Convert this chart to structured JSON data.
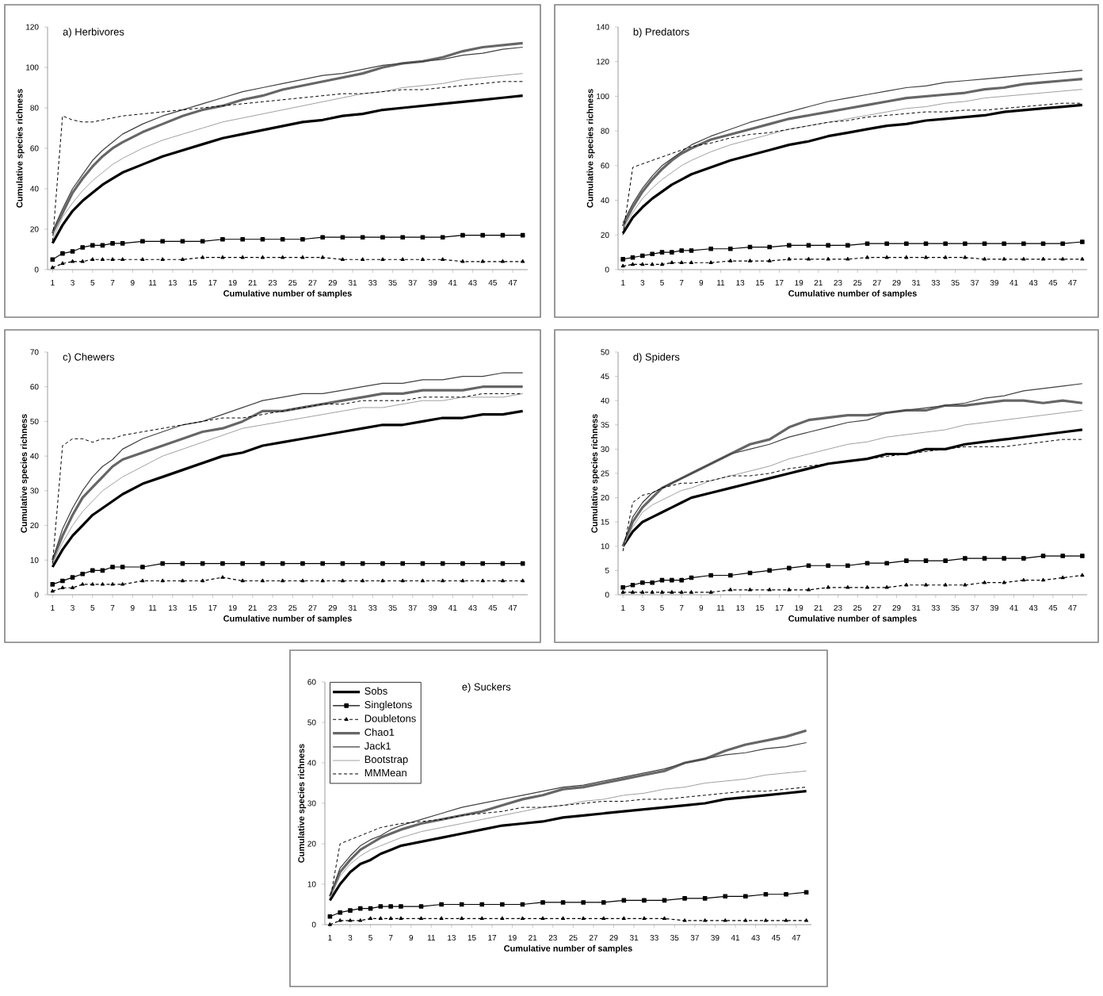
{
  "chart_data": [
    {
      "type": "line",
      "title": "a) Herbivores",
      "xlabel": "Cumulative number of samples",
      "ylabel": "Cumulative species richness",
      "xlim": [
        0.5,
        48.5
      ],
      "xticks": [
        1,
        3,
        5,
        7,
        9,
        11,
        13,
        15,
        17,
        19,
        21,
        23,
        25,
        27,
        29,
        31,
        33,
        35,
        37,
        39,
        41,
        43,
        45,
        47
      ],
      "ylim": [
        0,
        120
      ],
      "yticks": [
        0,
        20,
        40,
        60,
        80,
        100,
        120
      ],
      "x": [
        1,
        2,
        3,
        4,
        5,
        6,
        7,
        8,
        10,
        12,
        14,
        16,
        18,
        20,
        22,
        24,
        26,
        28,
        30,
        32,
        34,
        36,
        38,
        40,
        42,
        44,
        46,
        48
      ],
      "series": [
        {
          "color": "#000000",
          "values": [
            13,
            22,
            29,
            34,
            38,
            42,
            45,
            48,
            52,
            56,
            59,
            62,
            65,
            67,
            69,
            71,
            73,
            74,
            76,
            77,
            79,
            80,
            81,
            82,
            83,
            84,
            85,
            86
          ]
        },
        {
          "color": "#000000",
          "marker": "square",
          "values": [
            5,
            8,
            9,
            11,
            12,
            12,
            13,
            13,
            14,
            14,
            14,
            14,
            15,
            15,
            15,
            15,
            15,
            16,
            16,
            16,
            16,
            16,
            16,
            16,
            17,
            17,
            17,
            17
          ]
        },
        {
          "color": "#000000",
          "marker": "triangle",
          "line_style": "dashed",
          "values": [
            1,
            3,
            4,
            4,
            5,
            5,
            5,
            5,
            5,
            5,
            5,
            6,
            6,
            6,
            6,
            6,
            6,
            6,
            5,
            5,
            5,
            5,
            5,
            5,
            4,
            4,
            4,
            4
          ]
        },
        {
          "color": "#666666",
          "values": [
            18,
            28,
            38,
            45,
            51,
            56,
            60,
            63,
            68,
            72,
            76,
            79,
            81,
            84,
            86,
            89,
            91,
            93,
            95,
            97,
            100,
            102,
            103,
            105,
            108,
            110,
            111,
            112
          ]
        },
        {
          "color": "#404040",
          "values": [
            19,
            30,
            40,
            47,
            54,
            59,
            63,
            67,
            72,
            76,
            79,
            82,
            85,
            88,
            90,
            92,
            94,
            96,
            97,
            99,
            101,
            102,
            103,
            104,
            106,
            107,
            109,
            110
          ]
        },
        {
          "color": "#a0a0a0",
          "values": [
            15,
            26,
            33,
            39,
            44,
            48,
            52,
            55,
            60,
            64,
            67,
            70,
            73,
            75,
            77,
            79,
            81,
            83,
            85,
            87,
            88,
            90,
            91,
            92,
            94,
            95,
            96,
            97
          ]
        },
        {
          "color": "#000000",
          "line_style": "dashed",
          "values": [
            14,
            76,
            74,
            73,
            73,
            74,
            75,
            76,
            77,
            78,
            79,
            80,
            81,
            82,
            83,
            84,
            85,
            86,
            87,
            87,
            88,
            89,
            89,
            90,
            91,
            92,
            93,
            93
          ]
        }
      ]
    },
    {
      "type": "line",
      "title": "b) Predators",
      "xlabel": "Cumulative number of samples",
      "ylabel": "Cumulative species richness",
      "xlim": [
        0.5,
        48.5
      ],
      "xticks": [
        1,
        3,
        5,
        7,
        9,
        11,
        13,
        15,
        17,
        19,
        21,
        23,
        25,
        27,
        29,
        31,
        33,
        35,
        37,
        39,
        41,
        43,
        45,
        47
      ],
      "ylim": [
        0,
        140
      ],
      "yticks": [
        0,
        20,
        40,
        60,
        80,
        100,
        120,
        140
      ],
      "x": [
        1,
        2,
        3,
        4,
        5,
        6,
        7,
        8,
        10,
        12,
        14,
        16,
        18,
        20,
        22,
        24,
        26,
        28,
        30,
        32,
        34,
        36,
        38,
        40,
        42,
        44,
        46,
        48
      ],
      "series": [
        {
          "color": "#000000",
          "values": [
            21,
            30,
            36,
            41,
            45,
            49,
            52,
            55,
            59,
            63,
            66,
            69,
            72,
            74,
            77,
            79,
            81,
            83,
            84,
            86,
            87,
            88,
            89,
            91,
            92,
            93,
            94,
            95
          ]
        },
        {
          "color": "#000000",
          "marker": "square",
          "values": [
            6,
            7,
            8,
            9,
            10,
            10,
            11,
            11,
            12,
            12,
            13,
            13,
            14,
            14,
            14,
            14,
            15,
            15,
            15,
            15,
            15,
            15,
            15,
            15,
            15,
            15,
            15,
            16
          ]
        },
        {
          "color": "#000000",
          "marker": "triangle",
          "line_style": "dashed",
          "values": [
            2,
            3,
            3,
            3,
            3,
            4,
            4,
            4,
            4,
            5,
            5,
            5,
            6,
            6,
            6,
            6,
            7,
            7,
            7,
            7,
            7,
            7,
            6,
            6,
            6,
            6,
            6,
            6
          ]
        },
        {
          "color": "#666666",
          "values": [
            25,
            36,
            45,
            52,
            58,
            63,
            67,
            70,
            75,
            78,
            81,
            84,
            87,
            89,
            91,
            93,
            95,
            97,
            99,
            100,
            101,
            102,
            104,
            105,
            107,
            108,
            109,
            110
          ]
        },
        {
          "color": "#404040",
          "values": [
            27,
            38,
            47,
            54,
            60,
            64,
            68,
            72,
            77,
            81,
            85,
            88,
            91,
            94,
            97,
            99,
            101,
            103,
            105,
            106,
            108,
            109,
            110,
            111,
            112,
            113,
            114,
            115
          ]
        },
        {
          "color": "#a0a0a0",
          "values": [
            23,
            33,
            41,
            47,
            52,
            56,
            60,
            63,
            68,
            72,
            75,
            78,
            81,
            83,
            85,
            87,
            89,
            91,
            93,
            94,
            96,
            97,
            99,
            100,
            101,
            102,
            103,
            104
          ]
        },
        {
          "color": "#000000",
          "line_style": "dashed",
          "values": [
            20,
            59,
            61,
            63,
            65,
            67,
            69,
            71,
            73,
            76,
            78,
            79,
            81,
            83,
            85,
            86,
            88,
            89,
            90,
            91,
            91,
            92,
            92,
            93,
            94,
            95,
            96,
            96
          ]
        }
      ]
    },
    {
      "type": "line",
      "title": "c) Chewers",
      "xlabel": "Cumulative number of samples",
      "ylabel": "Cumulative species richness",
      "xlim": [
        0.5,
        48.5
      ],
      "xticks": [
        1,
        3,
        5,
        7,
        9,
        11,
        13,
        15,
        17,
        19,
        21,
        23,
        25,
        27,
        29,
        31,
        33,
        35,
        37,
        39,
        41,
        43,
        45,
        47
      ],
      "ylim": [
        0,
        70
      ],
      "yticks": [
        0,
        10,
        20,
        30,
        40,
        50,
        60,
        70
      ],
      "x": [
        1,
        2,
        3,
        4,
        5,
        6,
        7,
        8,
        10,
        12,
        14,
        16,
        18,
        20,
        22,
        24,
        26,
        28,
        30,
        32,
        34,
        36,
        38,
        40,
        42,
        44,
        46,
        48
      ],
      "series": [
        {
          "color": "#000000",
          "values": [
            8,
            13,
            17,
            20,
            23,
            25,
            27,
            29,
            32,
            34,
            36,
            38,
            40,
            41,
            43,
            44,
            45,
            46,
            47,
            48,
            49,
            49,
            50,
            51,
            51,
            52,
            52,
            53
          ]
        },
        {
          "color": "#000000",
          "marker": "square",
          "values": [
            3,
            4,
            5,
            6,
            7,
            7,
            8,
            8,
            8,
            9,
            9,
            9,
            9,
            9,
            9,
            9,
            9,
            9,
            9,
            9,
            9,
            9,
            9,
            9,
            9,
            9,
            9,
            9
          ]
        },
        {
          "color": "#000000",
          "marker": "triangle",
          "line_style": "dashed",
          "values": [
            1,
            2,
            2,
            3,
            3,
            3,
            3,
            3,
            4,
            4,
            4,
            4,
            5,
            4,
            4,
            4,
            4,
            4,
            4,
            4,
            4,
            4,
            4,
            4,
            4,
            4,
            4,
            4
          ]
        },
        {
          "color": "#666666",
          "values": [
            10,
            17,
            23,
            28,
            31,
            34,
            37,
            39,
            41,
            43,
            45,
            47,
            48,
            50,
            53,
            53,
            54,
            55,
            56,
            57,
            58,
            58,
            59,
            59,
            59,
            60,
            60,
            60
          ]
        },
        {
          "color": "#404040",
          "values": [
            10,
            19,
            25,
            30,
            34,
            37,
            39,
            42,
            45,
            47,
            49,
            50,
            52,
            54,
            56,
            57,
            58,
            58,
            59,
            60,
            61,
            61,
            62,
            62,
            63,
            63,
            64,
            64
          ]
        },
        {
          "color": "#a0a0a0",
          "values": [
            9,
            15,
            20,
            24,
            27,
            30,
            32,
            34,
            37,
            40,
            42,
            44,
            46,
            48,
            49,
            50,
            51,
            52,
            53,
            54,
            54,
            55,
            56,
            56,
            57,
            57,
            57,
            58
          ]
        },
        {
          "color": "#000000",
          "line_style": "dashed",
          "values": [
            9,
            43,
            45,
            45,
            44,
            45,
            45,
            46,
            47,
            48,
            49,
            50,
            51,
            51,
            52,
            53,
            54,
            55,
            55,
            56,
            56,
            56,
            57,
            57,
            57,
            58,
            58,
            58
          ]
        }
      ]
    },
    {
      "type": "line",
      "title": "d) Spiders",
      "xlabel": "Cumulative number of samples",
      "ylabel": "Cumulative species richness",
      "xlim": [
        0.5,
        48.5
      ],
      "xticks": [
        1,
        3,
        5,
        7,
        9,
        11,
        13,
        15,
        17,
        19,
        21,
        23,
        25,
        27,
        29,
        31,
        33,
        35,
        37,
        39,
        41,
        43,
        45,
        47
      ],
      "ylim": [
        0,
        50
      ],
      "yticks": [
        0,
        5,
        10,
        15,
        20,
        25,
        30,
        35,
        40,
        45,
        50
      ],
      "x": [
        1,
        2,
        3,
        4,
        5,
        6,
        7,
        8,
        10,
        12,
        14,
        16,
        18,
        20,
        22,
        24,
        26,
        28,
        30,
        32,
        34,
        36,
        38,
        40,
        42,
        44,
        46,
        48
      ],
      "series": [
        {
          "color": "#000000",
          "values": [
            10,
            13,
            15,
            16,
            17,
            18,
            19,
            20,
            21,
            22,
            23,
            24,
            25,
            26,
            27,
            27.5,
            28,
            29,
            29,
            30,
            30,
            31,
            31.5,
            32,
            32.5,
            33,
            33.5,
            34
          ]
        },
        {
          "color": "#000000",
          "marker": "square",
          "values": [
            1.5,
            2,
            2.5,
            2.5,
            3,
            3,
            3,
            3.5,
            4,
            4,
            4.5,
            5,
            5.5,
            6,
            6,
            6,
            6.5,
            6.5,
            7,
            7,
            7,
            7.5,
            7.5,
            7.5,
            7.5,
            8,
            8,
            8
          ]
        },
        {
          "color": "#000000",
          "marker": "triangle",
          "line_style": "dashed",
          "values": [
            0.5,
            0.5,
            0.5,
            0.5,
            0.5,
            0.5,
            0.5,
            0.5,
            0.5,
            1,
            1,
            1,
            1,
            1,
            1.5,
            1.5,
            1.5,
            1.5,
            2,
            2,
            2,
            2,
            2.5,
            2.5,
            3,
            3,
            3.5,
            4
          ]
        },
        {
          "color": "#666666",
          "values": [
            10,
            15,
            18,
            20,
            22,
            23,
            24,
            25,
            27,
            29,
            31,
            32,
            34.5,
            36,
            36.5,
            37,
            37,
            37.5,
            38,
            38,
            39,
            39,
            39.5,
            40,
            40,
            39.5,
            40,
            39.5
          ]
        },
        {
          "color": "#404040",
          "values": [
            10,
            16,
            19,
            21,
            22,
            23,
            24,
            25,
            27,
            29,
            30,
            31,
            32.5,
            33.5,
            34.5,
            35.5,
            36,
            37.5,
            38,
            38.5,
            39,
            39.5,
            40.5,
            41,
            42,
            42.5,
            43,
            43.5
          ]
        },
        {
          "color": "#a0a0a0",
          "values": [
            10,
            14,
            17,
            18.5,
            19.5,
            20.5,
            21.5,
            22,
            23.5,
            24.5,
            25.5,
            26.5,
            28,
            29,
            30,
            31,
            31.5,
            32.5,
            33,
            33.5,
            34,
            35,
            35.5,
            36,
            36.5,
            37,
            37.5,
            38
          ]
        },
        {
          "color": "#000000",
          "line_style": "dashed",
          "values": [
            9,
            19,
            20.5,
            21,
            22,
            22.5,
            23,
            23,
            23.5,
            24.5,
            24.5,
            25,
            26,
            26.5,
            27,
            27.5,
            28,
            28.5,
            29,
            29.5,
            30,
            30.5,
            30.5,
            30.5,
            31,
            31.5,
            32,
            32
          ]
        }
      ]
    },
    {
      "type": "line",
      "title": "e) Suckers",
      "xlabel": "Cumulative number of samples",
      "ylabel": "Cumulative species richness",
      "xlim": [
        0.5,
        48.5
      ],
      "xticks": [
        1,
        3,
        5,
        7,
        9,
        11,
        13,
        15,
        17,
        19,
        21,
        23,
        25,
        27,
        29,
        31,
        33,
        35,
        37,
        39,
        41,
        43,
        45,
        47
      ],
      "ylim": [
        0,
        60
      ],
      "yticks": [
        0,
        10,
        20,
        30,
        40,
        50,
        60
      ],
      "legend": "top left",
      "x": [
        1,
        2,
        3,
        4,
        5,
        6,
        7,
        8,
        10,
        12,
        14,
        16,
        18,
        20,
        22,
        24,
        26,
        28,
        30,
        32,
        34,
        36,
        38,
        40,
        42,
        44,
        46,
        48
      ],
      "series": [
        {
          "name": "Sobs",
          "color": "#000000",
          "values": [
            6,
            10,
            13,
            15,
            16,
            17.5,
            18.5,
            19.5,
            20.5,
            21.5,
            22.5,
            23.5,
            24.5,
            25,
            25.5,
            26.5,
            27,
            27.5,
            28,
            28.5,
            29,
            29.5,
            30,
            31,
            31.5,
            32,
            32.5,
            33
          ]
        },
        {
          "name": "Singletons",
          "color": "#000000",
          "marker": "square",
          "values": [
            2,
            3,
            3.5,
            4,
            4,
            4.5,
            4.5,
            4.5,
            4.5,
            5,
            5,
            5,
            5,
            5,
            5.5,
            5.5,
            5.5,
            5.5,
            6,
            6,
            6,
            6.5,
            6.5,
            7,
            7,
            7.5,
            7.5,
            8
          ]
        },
        {
          "name": "Doubletons",
          "color": "#000000",
          "marker": "triangle",
          "line_style": "dashed",
          "values": [
            0,
            1,
            1,
            1,
            1.5,
            1.5,
            1.5,
            1.5,
            1.5,
            1.5,
            1.5,
            1.5,
            1.5,
            1.5,
            1.5,
            1.5,
            1.5,
            1.5,
            1.5,
            1.5,
            1.5,
            1,
            1,
            1,
            1,
            1,
            1,
            1
          ]
        },
        {
          "name": "Chao1",
          "color": "#666666",
          "values": [
            7,
            13,
            16,
            18.5,
            20,
            21.5,
            22.5,
            23.5,
            25,
            26,
            27,
            28,
            29.5,
            31,
            32,
            33.5,
            34,
            35,
            36,
            37,
            38,
            40,
            41,
            43,
            44.5,
            45.5,
            46.5,
            48
          ]
        },
        {
          "name": "Jack1",
          "color": "#404040",
          "values": [
            7,
            14,
            17,
            19.5,
            21,
            22,
            23.5,
            24.5,
            26,
            27.5,
            29,
            30,
            31,
            32,
            33,
            34,
            34.5,
            35.5,
            36.5,
            37.5,
            38.5,
            40,
            41,
            42,
            42.5,
            43.5,
            44,
            45
          ]
        },
        {
          "name": "Bootstrap",
          "color": "#a0a0a0",
          "values": [
            6.5,
            12,
            15,
            17,
            18.5,
            19.5,
            20.5,
            21.5,
            23,
            24,
            25,
            26,
            27,
            28,
            29,
            29.5,
            30.5,
            31,
            32,
            32.5,
            33.5,
            34,
            35,
            35.5,
            36,
            37,
            37.5,
            38
          ]
        },
        {
          "name": "MMMean",
          "color": "#000000",
          "line_style": "dashed",
          "values": [
            6,
            20,
            21,
            22,
            23,
            24,
            24.5,
            25,
            25.5,
            26,
            27,
            27.5,
            28,
            29,
            29,
            29.5,
            30,
            30.5,
            30.5,
            31,
            31,
            31.5,
            32,
            32.5,
            33,
            33,
            33.5,
            34
          ]
        }
      ]
    }
  ]
}
